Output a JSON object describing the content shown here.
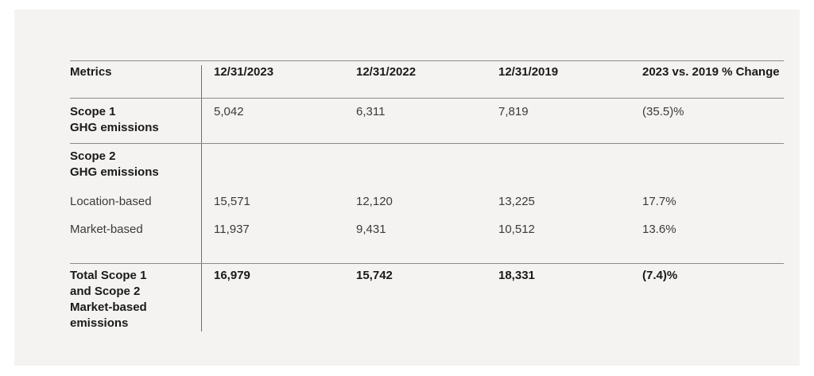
{
  "table": {
    "headers": [
      "Metrics",
      "12/31/2023",
      "12/31/2022",
      "12/31/2019",
      "2023 vs. 2019 % Change"
    ],
    "rows": {
      "scope1": {
        "label_line1": "Scope 1",
        "label_line2": "GHG emissions",
        "values": [
          "5,042",
          "6,311",
          "7,819",
          "(35.5)%"
        ]
      },
      "scope2": {
        "label_line1": "Scope 2",
        "label_line2": "GHG emissions"
      },
      "location_based": {
        "label": "Location-based",
        "values": [
          "15,571",
          "12,120",
          "13,225",
          "17.7%"
        ]
      },
      "market_based": {
        "label": "Market-based",
        "values": [
          "11,937",
          "9,431",
          "10,512",
          "13.6%"
        ]
      },
      "total": {
        "label_line1": "Total Scope 1",
        "label_line2": "and Scope 2",
        "label_line3": "Market-based",
        "label_line4": "emissions",
        "values": [
          "16,979",
          "15,742",
          "18,331",
          "(7.4)%"
        ]
      }
    }
  }
}
